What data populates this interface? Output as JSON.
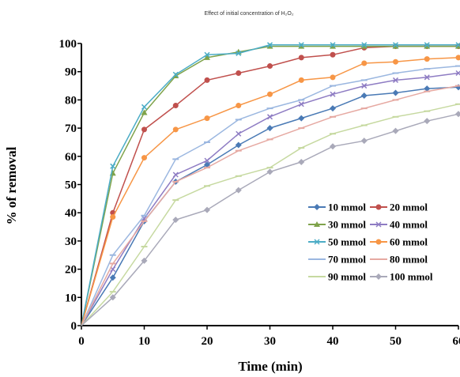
{
  "chart_data": {
    "type": "line",
    "title": "Effect of initial concentration of H₂O₂",
    "xlabel": "Time (min)",
    "ylabel": "% of removal",
    "xlim": [
      0,
      60
    ],
    "ylim": [
      0,
      100
    ],
    "xticks": [
      0,
      10,
      20,
      30,
      40,
      50,
      60
    ],
    "yticks": [
      0,
      10,
      20,
      30,
      40,
      50,
      60,
      70,
      80,
      90,
      100
    ],
    "grid": false,
    "legend_position": "bottom-right",
    "x": [
      0,
      5,
      10,
      15,
      20,
      25,
      30,
      35,
      40,
      45,
      50,
      55,
      60
    ],
    "series": [
      {
        "name": "10 mmol",
        "color": "#4a7ab5",
        "marker": "diamond",
        "values": [
          0,
          17,
          37,
          51,
          57,
          64,
          70,
          73.5,
          77,
          81.5,
          82.5,
          84,
          84.5
        ]
      },
      {
        "name": "20 mmol",
        "color": "#c0504d",
        "marker": "circle",
        "values": [
          0,
          40,
          69.5,
          78,
          87,
          89.5,
          92,
          95,
          96,
          98.5,
          99,
          99,
          99
        ]
      },
      {
        "name": "30 mmol",
        "color": "#7fa34b",
        "marker": "triangle",
        "values": [
          0,
          54,
          75.5,
          88.5,
          95,
          97,
          99,
          99,
          99,
          99,
          99,
          99,
          99
        ]
      },
      {
        "name": "40 mmol",
        "color": "#8e7cc3",
        "marker": "x",
        "values": [
          0,
          20,
          38,
          53.5,
          58.5,
          68,
          74,
          78.5,
          82,
          85,
          87,
          88,
          89.5
        ]
      },
      {
        "name": "50 mmol",
        "color": "#4bacc6",
        "marker": "x",
        "values": [
          0,
          56.5,
          77.5,
          89,
          96,
          96.5,
          99.5,
          99.5,
          99.5,
          99.5,
          99.5,
          99.5,
          99.5
        ]
      },
      {
        "name": "60 mmol",
        "color": "#f79646",
        "marker": "circle",
        "values": [
          0,
          38.5,
          59.5,
          69.5,
          73.5,
          78,
          82,
          87,
          88,
          93,
          93.5,
          94.5,
          95
        ]
      },
      {
        "name": "70 mmol",
        "color": "#9bb7e0",
        "marker": "dash",
        "values": [
          0,
          25,
          39,
          59,
          65,
          73,
          77,
          80,
          85,
          87,
          89.5,
          91,
          92
        ]
      },
      {
        "name": "80 mmol",
        "color": "#e6a9a2",
        "marker": "dash",
        "values": [
          0,
          22,
          37,
          51,
          56,
          62,
          66,
          70,
          74,
          77,
          80,
          83,
          85
        ]
      },
      {
        "name": "90 mmol",
        "color": "#c6d9a0",
        "marker": "dash",
        "values": [
          0,
          12,
          28,
          44.5,
          49.5,
          53,
          56,
          63,
          68,
          71,
          74,
          76,
          78.5
        ]
      },
      {
        "name": "100 mmol",
        "color": "#a9a9b9",
        "marker": "diamond",
        "values": [
          0,
          10,
          23,
          37.5,
          41,
          48,
          54.5,
          58,
          63.5,
          65.5,
          69,
          72.5,
          75
        ]
      }
    ]
  }
}
